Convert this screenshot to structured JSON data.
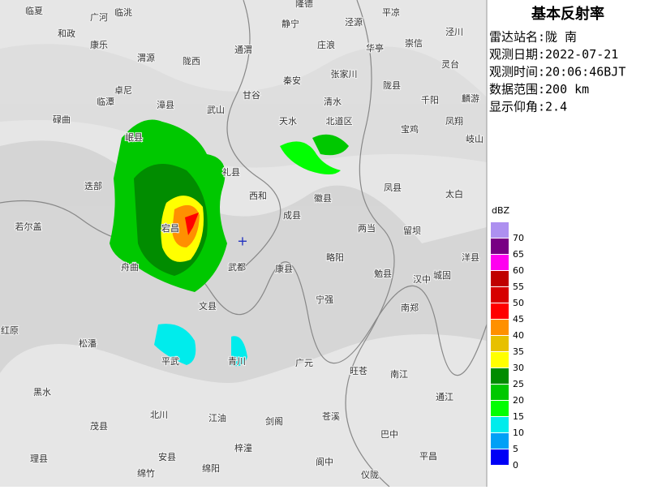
{
  "title": "基本反射率",
  "info": [
    "雷达站名:陇 南",
    "观测日期:2022-07-21",
    "观测时间:20:06:46BJT",
    "数据范围:200 km",
    "显示仰角:2.4"
  ],
  "legend": {
    "unit": "dBZ",
    "items": [
      {
        "label": "70",
        "color": "#ad90f0"
      },
      {
        "label": "65",
        "color": "#780084"
      },
      {
        "label": "60",
        "color": "#ff00f0"
      },
      {
        "label": "55",
        "color": "#c00000"
      },
      {
        "label": "50",
        "color": "#d60000"
      },
      {
        "label": "45",
        "color": "#ff0000"
      },
      {
        "label": "40",
        "color": "#ff9000"
      },
      {
        "label": "35",
        "color": "#e7c000"
      },
      {
        "label": "30",
        "color": "#ffff00"
      },
      {
        "label": "25",
        "color": "#018c00"
      },
      {
        "label": "20",
        "color": "#00c800"
      },
      {
        "label": "15",
        "color": "#02fe02"
      },
      {
        "label": "10",
        "color": "#00ecec"
      },
      {
        "label": "5",
        "color": "#01a0f6"
      },
      {
        "label": "0",
        "color": "#0000f6"
      }
    ]
  },
  "places": [
    "临夏",
    "临洮",
    "隆德",
    "静宁",
    "泾源",
    "平凉",
    "泾川",
    "广河",
    "和政",
    "康乐",
    "渭源",
    "陇西",
    "通渭",
    "庄浪",
    "华亭",
    "崇信",
    "灵台",
    "秦安",
    "张家川",
    "陇县",
    "千阳",
    "麟游",
    "卓尼",
    "临潭",
    "漳县",
    "武山",
    "甘谷",
    "清水",
    "天水",
    "北道区",
    "宝鸡",
    "凤翔",
    "岐山",
    "碌曲",
    "岷县",
    "迭部",
    "礼县",
    "西和",
    "徽县",
    "凤县",
    "太白",
    "成县",
    "若尔盖",
    "两当",
    "留坝",
    "宕昌",
    "舟曲",
    "武都",
    "康县",
    "略阳",
    "勉县",
    "汉中",
    "城固",
    "洋县",
    "文县",
    "宁强",
    "南郑",
    "松潘",
    "红原",
    "平武",
    "青川",
    "广元",
    "旺苍",
    "南江",
    "黑水",
    "通江",
    "北川",
    "江油",
    "剑阁",
    "苍溪",
    "巴中",
    "茂县",
    "安县",
    "梓潼",
    "阆中",
    "平昌",
    "理县",
    "绵竹",
    "绵阳",
    "仪陇"
  ]
}
